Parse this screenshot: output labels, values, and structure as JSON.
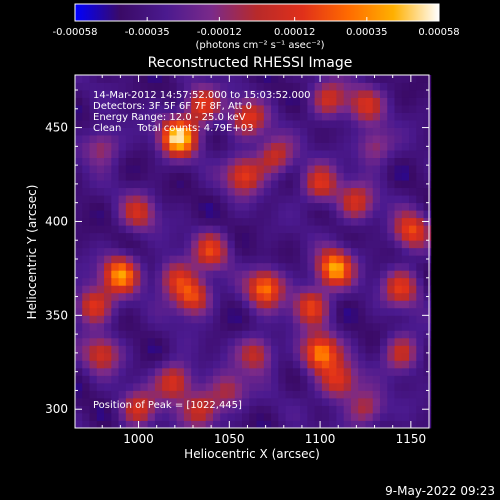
{
  "chart_data": {
    "type": "heatmap",
    "title": "Reconstructed RHESSI Image",
    "xlabel": "Heliocentric X (arcsec)",
    "ylabel": "Heliocentric Y (arcsec)",
    "xlim": [
      965,
      1160
    ],
    "ylim": [
      290,
      478
    ],
    "xticks": [
      1000,
      1050,
      1100,
      1150
    ],
    "yticks": [
      300,
      350,
      400,
      450
    ],
    "colorbar": {
      "ticks": [
        "-0.00058",
        "-0.00035",
        "-0.00012",
        "0.00012",
        "0.00035",
        "0.00058"
      ],
      "range": [
        -0.00058,
        0.00058
      ],
      "units_label": "(photons cm⁻² s⁻¹ asec⁻²)",
      "colormap": [
        "#0000ff",
        "#3a0a66",
        "#4b1a8f",
        "#7a2a8a",
        "#b82a2a",
        "#e0301a",
        "#ff6a00",
        "#ffb000",
        "#ffffff"
      ]
    },
    "annotations": {
      "time_range": "14-Mar-2012 14:57:52.000 to 15:03:52.000",
      "detectors": "Detectors: 3F 5F 6F 7F 8F, Att 0",
      "energy": "Energy Range: 12.0 - 25.0 keV",
      "clean": "Clean     Total counts: 4.79E+03",
      "peak": "Position of Peak = [1022,445]"
    },
    "peak": {
      "x": 1022,
      "y": 445,
      "value": 0.00058
    },
    "sources": [
      {
        "x": 1022,
        "y": 445,
        "amp": 1.0
      },
      {
        "x": 1035,
        "y": 462,
        "amp": 0.6
      },
      {
        "x": 1060,
        "y": 455,
        "amp": 0.55
      },
      {
        "x": 1058,
        "y": 425,
        "amp": 0.6
      },
      {
        "x": 1075,
        "y": 435,
        "amp": 0.5
      },
      {
        "x": 1105,
        "y": 465,
        "amp": 0.5
      },
      {
        "x": 1125,
        "y": 462,
        "amp": 0.45
      },
      {
        "x": 1100,
        "y": 420,
        "amp": 0.55
      },
      {
        "x": 1120,
        "y": 410,
        "amp": 0.5
      },
      {
        "x": 1150,
        "y": 395,
        "amp": 0.6
      },
      {
        "x": 1145,
        "y": 365,
        "amp": 0.55
      },
      {
        "x": 1145,
        "y": 330,
        "amp": 0.5
      },
      {
        "x": 1108,
        "y": 375,
        "amp": 0.85
      },
      {
        "x": 1095,
        "y": 355,
        "amp": 0.6
      },
      {
        "x": 1100,
        "y": 330,
        "amp": 0.8
      },
      {
        "x": 1110,
        "y": 315,
        "amp": 0.6
      },
      {
        "x": 1125,
        "y": 300,
        "amp": 0.45
      },
      {
        "x": 1070,
        "y": 365,
        "amp": 0.75
      },
      {
        "x": 1065,
        "y": 330,
        "amp": 0.5
      },
      {
        "x": 1040,
        "y": 385,
        "amp": 0.55
      },
      {
        "x": 1030,
        "y": 360,
        "amp": 0.65
      },
      {
        "x": 1020,
        "y": 370,
        "amp": 0.5
      },
      {
        "x": 990,
        "y": 372,
        "amp": 0.8
      },
      {
        "x": 975,
        "y": 355,
        "amp": 0.6
      },
      {
        "x": 980,
        "y": 330,
        "amp": 0.5
      },
      {
        "x": 1000,
        "y": 405,
        "amp": 0.45
      },
      {
        "x": 1020,
        "y": 315,
        "amp": 0.6
      },
      {
        "x": 1035,
        "y": 300,
        "amp": 0.5
      },
      {
        "x": 1000,
        "y": 300,
        "amp": 0.5
      },
      {
        "x": 980,
        "y": 440,
        "amp": 0.4
      },
      {
        "x": 1050,
        "y": 310,
        "amp": 0.4
      },
      {
        "x": 1130,
        "y": 440,
        "amp": 0.4
      }
    ]
  },
  "footer": {
    "datestamp": "9-May-2022 09:23"
  }
}
